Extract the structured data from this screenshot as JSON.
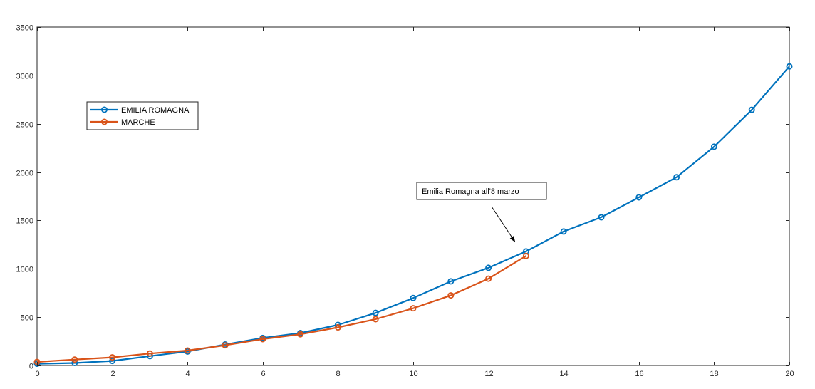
{
  "chart_data": {
    "type": "line",
    "title": "",
    "xlabel": "",
    "ylabel": "",
    "xlim": [
      0,
      20
    ],
    "ylim": [
      0,
      3500
    ],
    "xticks": [
      0,
      2,
      4,
      6,
      8,
      10,
      12,
      14,
      16,
      18,
      20
    ],
    "yticks": [
      0,
      500,
      1000,
      1500,
      2000,
      2500,
      3000,
      3500
    ],
    "grid": false,
    "legend_position": "upper-left",
    "series": [
      {
        "name": "EMILIA ROMAGNA",
        "color": "#0072BD",
        "x": [
          0,
          1,
          2,
          3,
          4,
          5,
          6,
          7,
          8,
          9,
          10,
          11,
          12,
          13,
          14,
          15,
          16,
          17,
          18,
          19,
          20
        ],
        "y": [
          18,
          26,
          47,
          97,
          145,
          217,
          285,
          335,
          420,
          544,
          698,
          870,
          1010,
          1180,
          1386,
          1533,
          1739,
          1947,
          2263,
          2644,
          3093
        ]
      },
      {
        "name": "MARCHE",
        "color": "#D95319",
        "x": [
          0,
          1,
          2,
          3,
          4,
          5,
          6,
          7,
          8,
          9,
          10,
          11,
          12,
          13
        ],
        "y": [
          37,
          61,
          84,
          124,
          155,
          209,
          273,
          323,
          394,
          479,
          592,
          725,
          898,
          1133
        ]
      }
    ],
    "annotations": [
      {
        "text": "Emilia Romagna all'8 marzo",
        "arrow_to": [
          12.9,
          1180
        ]
      }
    ]
  }
}
